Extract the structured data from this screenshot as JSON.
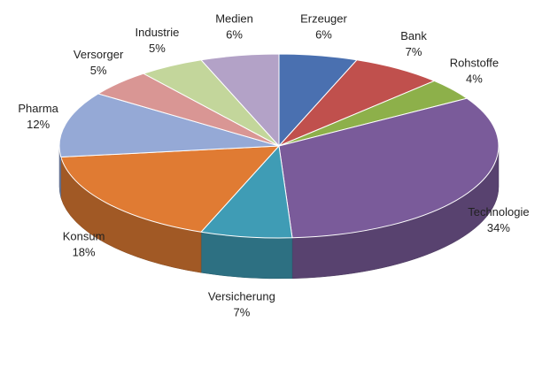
{
  "chart_data": {
    "type": "pie",
    "categories": [
      "Erzeuger",
      "Bank",
      "Rohstoffe",
      "Technologie",
      "Versicherung",
      "Konsum",
      "Pharma",
      "Versorger",
      "Industrie",
      "Medien"
    ],
    "values": [
      6,
      7,
      4,
      34,
      7,
      18,
      12,
      5,
      5,
      6
    ],
    "value_labels": [
      "6%",
      "7%",
      "4%",
      "34%",
      "7%",
      "18%",
      "12%",
      "5%",
      "5%",
      "6%"
    ],
    "colors": [
      "#4a70b0",
      "#c0504d",
      "#8db04a",
      "#7a5b9a",
      "#3f9cb5",
      "#e07b33",
      "#95a9d6",
      "#d99694",
      "#c3d69b",
      "#b3a2c7"
    ]
  }
}
